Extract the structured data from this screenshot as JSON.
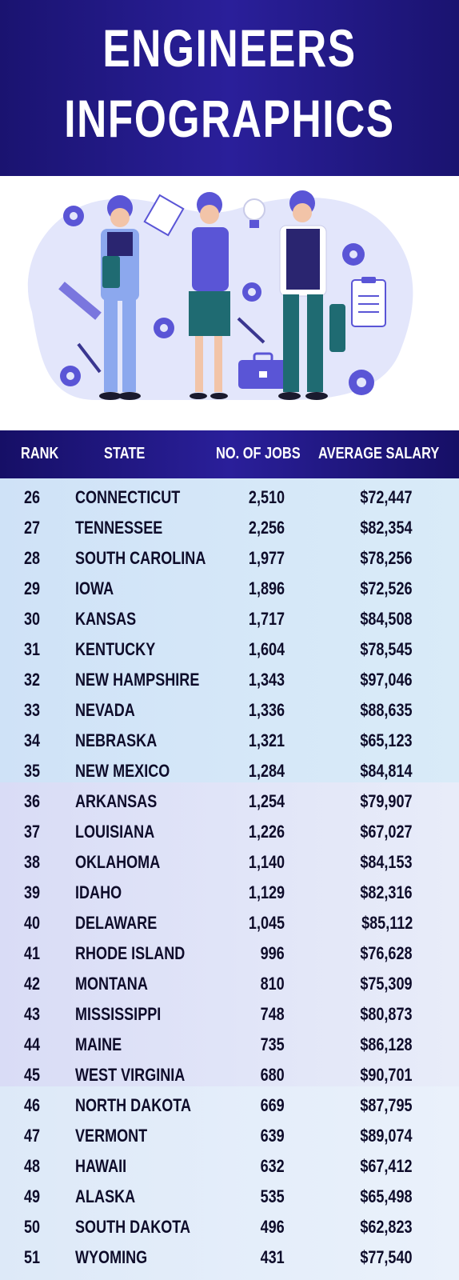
{
  "header": {
    "title_line1": "ENGINEERS",
    "title_line2": "INFOGRAPHICS"
  },
  "colors": {
    "header_bg": "#1a1370",
    "band1": "#d3e6f8",
    "band2": "#e0e4f8",
    "band3": "#e4eefa",
    "accent": "#5a55d6"
  },
  "chart_data": {
    "type": "table",
    "columns": [
      "RANK",
      "STATE",
      "NO. OF JOBS",
      "AVERAGE SALARY"
    ],
    "rows": [
      [
        "26",
        "CONNECTICUT",
        "2,510",
        "$72,447"
      ],
      [
        "27",
        "TENNESSEE",
        "2,256",
        "$82,354"
      ],
      [
        "28",
        "SOUTH CAROLINA",
        "1,977",
        "$78,256"
      ],
      [
        "29",
        "IOWA",
        "1,896",
        "$72,526"
      ],
      [
        "30",
        "KANSAS",
        "1,717",
        "$84,508"
      ],
      [
        "31",
        "KENTUCKY",
        "1,604",
        "$78,545"
      ],
      [
        "32",
        "NEW HAMPSHIRE",
        "1,343",
        "$97,046"
      ],
      [
        "33",
        "NEVADA",
        "1,336",
        "$88,635"
      ],
      [
        "34",
        "NEBRASKA",
        "1,321",
        "$65,123"
      ],
      [
        "35",
        "NEW MEXICO",
        "1,284",
        "$84,814"
      ],
      [
        "36",
        "ARKANSAS",
        "1,254",
        "$79,907"
      ],
      [
        "37",
        "LOUISIANA",
        "1,226",
        "$67,027"
      ],
      [
        "38",
        "OKLAHOMA",
        "1,140",
        "$84,153"
      ],
      [
        "39",
        "IDAHO",
        "1,129",
        "$82,316"
      ],
      [
        "40",
        "DELAWARE",
        "1,045",
        "$85,112"
      ],
      [
        "41",
        "RHODE ISLAND",
        "996",
        "$76,628"
      ],
      [
        "42",
        "MONTANA",
        "810",
        "$75,309"
      ],
      [
        "43",
        "MISSISSIPPI",
        "748",
        "$80,873"
      ],
      [
        "44",
        "MAINE",
        "735",
        "$86,128"
      ],
      [
        "45",
        "WEST VIRGINIA",
        "680",
        "$90,701"
      ],
      [
        "46",
        "NORTH DAKOTA",
        "669",
        "$87,795"
      ],
      [
        "47",
        "VERMONT",
        "639",
        "$89,074"
      ],
      [
        "48",
        "HAWAII",
        "632",
        "$67,412"
      ],
      [
        "49",
        "ALASKA",
        "535",
        "$65,498"
      ],
      [
        "50",
        "SOUTH DAKOTA",
        "496",
        "$62,823"
      ],
      [
        "51",
        "WYOMING",
        "431",
        "$77,540"
      ]
    ]
  }
}
